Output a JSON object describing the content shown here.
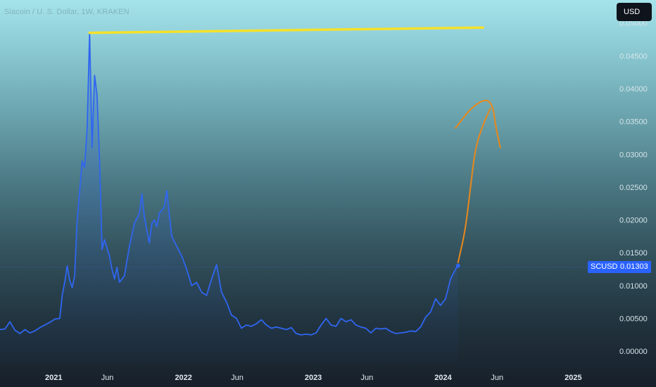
{
  "header": {
    "title": "Siacoin / U. S. Dollar, 1W, KRAKEN",
    "currency_button": "USD"
  },
  "price_tag": {
    "symbol": "SCUSD",
    "value": "0.01303"
  },
  "colors": {
    "price_line": "#2f66f0",
    "resistance_line": "#f5e12a",
    "projection_line": "#e8881c",
    "tag_bg": "#2962ff"
  },
  "chart_data": {
    "type": "line",
    "title": "Siacoin / U. S. Dollar, 1W, KRAKEN",
    "xlabel": "",
    "ylabel": "",
    "y_axis_position": "right",
    "grid": false,
    "legend": "none",
    "x_ticks": [
      "2021",
      "Jun",
      "2022",
      "Jun",
      "2023",
      "Jun",
      "2024",
      "Jun",
      "2025"
    ],
    "x_tick_dates": [
      "2021-01-01",
      "2021-06-01",
      "2022-01-01",
      "2022-06-01",
      "2023-01-01",
      "2023-06-01",
      "2024-01-01",
      "2024-06-01",
      "2025-01-01"
    ],
    "y_ticks": [
      "0.00000",
      "0.00500",
      "0.01000",
      "0.01500",
      "0.02000",
      "0.02500",
      "0.03000",
      "0.03500",
      "0.04000",
      "0.04500",
      "0.05000"
    ],
    "xlim": [
      "2020-08-03",
      "2025-05-01"
    ],
    "ylim": [
      -0.0018,
      0.0535
    ],
    "series": [
      {
        "name": "SCUSD",
        "points": [
          [
            "2020-08-03",
            0.0033
          ],
          [
            "2020-08-17",
            0.0034
          ],
          [
            "2020-08-31",
            0.0045
          ],
          [
            "2020-09-14",
            0.0032
          ],
          [
            "2020-09-28",
            0.0027
          ],
          [
            "2020-10-12",
            0.0033
          ],
          [
            "2020-10-26",
            0.0028
          ],
          [
            "2020-11-09",
            0.0031
          ],
          [
            "2020-11-23",
            0.0036
          ],
          [
            "2020-12-07",
            0.004
          ],
          [
            "2020-12-21",
            0.0044
          ],
          [
            "2021-01-04",
            0.0049
          ],
          [
            "2021-01-18",
            0.005
          ],
          [
            "2021-01-25",
            0.0085
          ],
          [
            "2021-02-01",
            0.0105
          ],
          [
            "2021-02-08",
            0.013
          ],
          [
            "2021-02-15",
            0.0108
          ],
          [
            "2021-02-22",
            0.0097
          ],
          [
            "2021-03-01",
            0.0115
          ],
          [
            "2021-03-08",
            0.02
          ],
          [
            "2021-03-15",
            0.0245
          ],
          [
            "2021-03-22",
            0.029
          ],
          [
            "2021-03-29",
            0.028
          ],
          [
            "2021-04-05",
            0.034
          ],
          [
            "2021-04-12",
            0.0485
          ],
          [
            "2021-04-19",
            0.031
          ],
          [
            "2021-04-26",
            0.042
          ],
          [
            "2021-05-03",
            0.039
          ],
          [
            "2021-05-10",
            0.029
          ],
          [
            "2021-05-17",
            0.0155
          ],
          [
            "2021-05-24",
            0.017
          ],
          [
            "2021-06-07",
            0.0145
          ],
          [
            "2021-06-14",
            0.0125
          ],
          [
            "2021-06-21",
            0.011
          ],
          [
            "2021-06-28",
            0.0128
          ],
          [
            "2021-07-05",
            0.0105
          ],
          [
            "2021-07-19",
            0.0115
          ],
          [
            "2021-08-02",
            0.016
          ],
          [
            "2021-08-16",
            0.0195
          ],
          [
            "2021-08-30",
            0.021
          ],
          [
            "2021-09-06",
            0.024
          ],
          [
            "2021-09-13",
            0.0205
          ],
          [
            "2021-09-20",
            0.0185
          ],
          [
            "2021-09-27",
            0.0165
          ],
          [
            "2021-10-04",
            0.0195
          ],
          [
            "2021-10-11",
            0.02
          ],
          [
            "2021-10-18",
            0.019
          ],
          [
            "2021-10-25",
            0.021
          ],
          [
            "2021-11-08",
            0.022
          ],
          [
            "2021-11-15",
            0.0245
          ],
          [
            "2021-11-22",
            0.021
          ],
          [
            "2021-11-29",
            0.0175
          ],
          [
            "2021-12-13",
            0.016
          ],
          [
            "2021-12-27",
            0.0145
          ],
          [
            "2022-01-10",
            0.0125
          ],
          [
            "2022-01-24",
            0.01
          ],
          [
            "2022-02-07",
            0.0105
          ],
          [
            "2022-02-21",
            0.009
          ],
          [
            "2022-03-07",
            0.0085
          ],
          [
            "2022-03-21",
            0.011
          ],
          [
            "2022-04-04",
            0.0132
          ],
          [
            "2022-04-18",
            0.009
          ],
          [
            "2022-05-02",
            0.0075
          ],
          [
            "2022-05-16",
            0.0055
          ],
          [
            "2022-05-30",
            0.005
          ],
          [
            "2022-06-13",
            0.0035
          ],
          [
            "2022-06-27",
            0.004
          ],
          [
            "2022-07-11",
            0.0038
          ],
          [
            "2022-07-25",
            0.0042
          ],
          [
            "2022-08-08",
            0.0048
          ],
          [
            "2022-08-22",
            0.004
          ],
          [
            "2022-09-05",
            0.0035
          ],
          [
            "2022-09-19",
            0.0037
          ],
          [
            "2022-10-03",
            0.0035
          ],
          [
            "2022-10-17",
            0.0033
          ],
          [
            "2022-10-31",
            0.0036
          ],
          [
            "2022-11-14",
            0.0027
          ],
          [
            "2022-11-28",
            0.0025
          ],
          [
            "2022-12-12",
            0.0026
          ],
          [
            "2022-12-26",
            0.0025
          ],
          [
            "2023-01-09",
            0.0028
          ],
          [
            "2023-01-23",
            0.004
          ],
          [
            "2023-02-06",
            0.005
          ],
          [
            "2023-02-20",
            0.004
          ],
          [
            "2023-03-06",
            0.0038
          ],
          [
            "2023-03-20",
            0.005
          ],
          [
            "2023-04-03",
            0.0045
          ],
          [
            "2023-04-17",
            0.0048
          ],
          [
            "2023-05-01",
            0.004
          ],
          [
            "2023-05-15",
            0.0037
          ],
          [
            "2023-05-29",
            0.0035
          ],
          [
            "2023-06-12",
            0.0028
          ],
          [
            "2023-06-26",
            0.0035
          ],
          [
            "2023-07-10",
            0.0034
          ],
          [
            "2023-07-24",
            0.0035
          ],
          [
            "2023-08-07",
            0.003
          ],
          [
            "2023-08-21",
            0.0027
          ],
          [
            "2023-09-04",
            0.0028
          ],
          [
            "2023-09-18",
            0.0029
          ],
          [
            "2023-10-02",
            0.0031
          ],
          [
            "2023-10-16",
            0.003
          ],
          [
            "2023-10-30",
            0.0037
          ],
          [
            "2023-11-13",
            0.0052
          ],
          [
            "2023-11-27",
            0.006
          ],
          [
            "2023-12-11",
            0.008
          ],
          [
            "2023-12-25",
            0.007
          ],
          [
            "2024-01-08",
            0.008
          ],
          [
            "2024-01-22",
            0.011
          ],
          [
            "2024-02-05",
            0.0125
          ],
          [
            "2024-02-12",
            0.01303
          ]
        ]
      }
    ],
    "annotations": [
      {
        "type": "trend_line",
        "color": "#f5e12a",
        "points": [
          [
            "2021-04-12",
            0.0485
          ],
          [
            "2024-04-22",
            0.0493
          ]
        ]
      },
      {
        "type": "projection_path",
        "color": "#e8881c",
        "points": [
          [
            "2024-02-12",
            0.0135
          ],
          [
            "2024-03-04",
            0.0185
          ],
          [
            "2024-03-18",
            0.025
          ],
          [
            "2024-04-01",
            0.031
          ],
          [
            "2024-04-22",
            0.0345
          ],
          [
            "2024-05-13",
            0.037
          ]
        ]
      },
      {
        "type": "projection_path",
        "color": "#e8881c",
        "points": [
          [
            "2024-02-05",
            0.034
          ],
          [
            "2024-03-18",
            0.037
          ],
          [
            "2024-04-29",
            0.0385
          ],
          [
            "2024-05-20",
            0.0375
          ],
          [
            "2024-05-27",
            0.0345
          ],
          [
            "2024-06-10",
            0.031
          ]
        ]
      }
    ]
  }
}
